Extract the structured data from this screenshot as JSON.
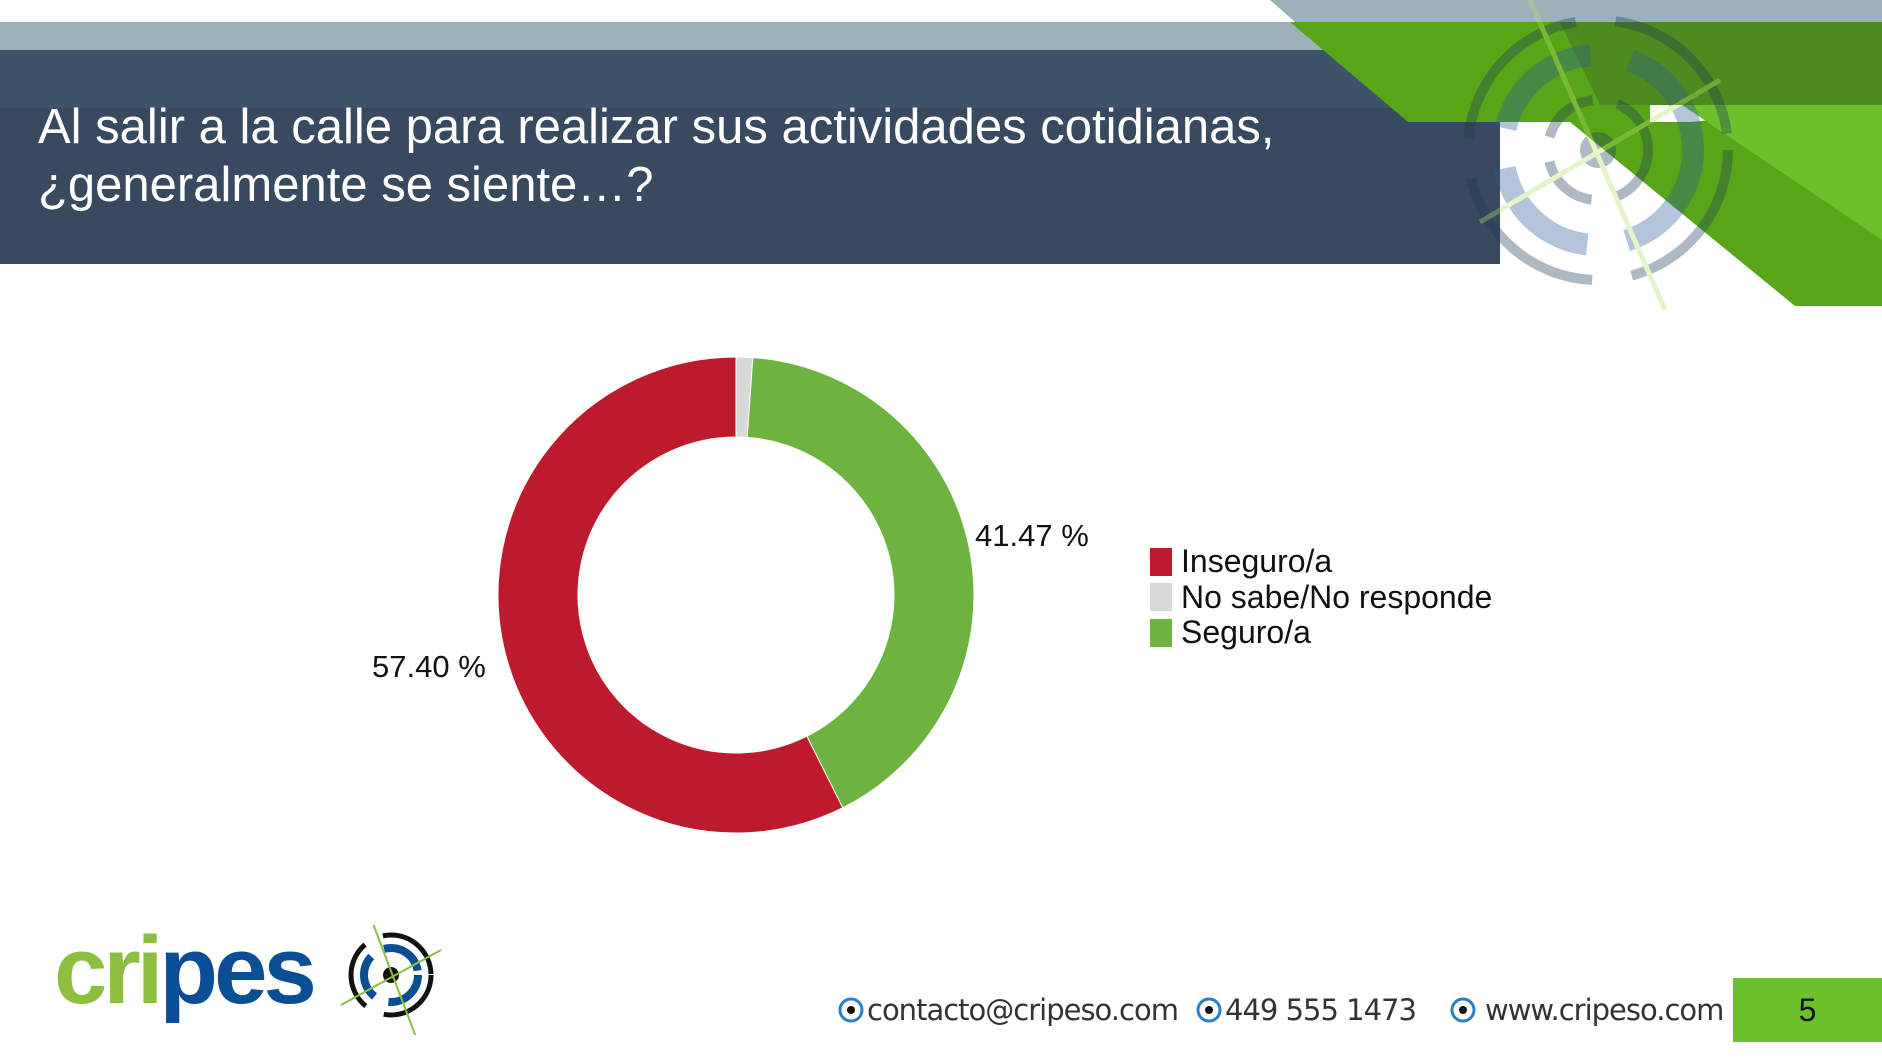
{
  "header": {
    "title_line1": "Al salir a la calle para realizar sus actividades cotidianas,",
    "title_line2": "¿generalmente se siente…?"
  },
  "chart_data": {
    "type": "pie",
    "variant": "donut",
    "title": "Al salir a la calle para realizar sus actividades cotidianas, ¿generalmente se siente…?",
    "categories": [
      "No sabe/No responde",
      "Seguro/a",
      "Inseguro/a"
    ],
    "values": [
      1.13,
      41.47,
      57.4
    ],
    "colors": [
      "#d9d9d9",
      "#6db33f",
      "#be1a2d"
    ],
    "data_labels": {
      "Seguro/a": "41.47 %",
      "Inseguro/a": "57.40 %"
    },
    "legend": {
      "placement": "right",
      "entries": [
        {
          "label": "Inseguro/a",
          "color": "#be1a2d"
        },
        {
          "label": "No sabe/No responde",
          "color": "#d9d9d9"
        },
        {
          "label": "Seguro/a",
          "color": "#6db33f"
        }
      ]
    }
  },
  "footer": {
    "logo_text": "cripeso",
    "email": "contacto@cripeso.com",
    "phone": "449 555 1473",
    "website": "www.cripeso.com",
    "page_number": "5"
  }
}
